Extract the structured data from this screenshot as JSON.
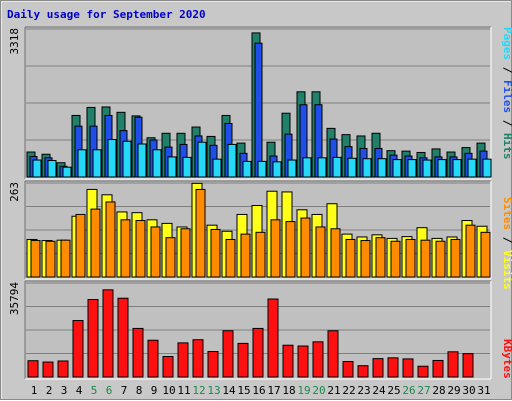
{
  "title": "Daily usage for September 2020",
  "colors": {
    "background": "#c8c8c8",
    "panel": "#c0c0c0",
    "hits": "#20806a",
    "files": "#1f4fe8",
    "pages": "#26d8f8",
    "visits": "#ffff1a",
    "sites": "#ff8c00",
    "kbytes": "#ff1010",
    "weekend_label": "#1c8a4a",
    "weekday_label": "#000000"
  },
  "side_labels": {
    "top": [
      {
        "text": "Pages",
        "color": "#26d8f8"
      },
      {
        "text": " / ",
        "color": "#000000"
      },
      {
        "text": "Files",
        "color": "#1f4fe8"
      },
      {
        "text": " / ",
        "color": "#000000"
      },
      {
        "text": "Hits",
        "color": "#20806a"
      }
    ],
    "middle": [
      {
        "text": "Sites",
        "color": "#ff8c00"
      },
      {
        "text": " / ",
        "color": "#000000"
      },
      {
        "text": "Visits",
        "color": "#ffff1a"
      }
    ],
    "bottom": [
      {
        "text": "KBytes",
        "color": "#ff1010"
      }
    ]
  },
  "chart_data": [
    {
      "type": "bar",
      "panel": "hits-files-pages",
      "max_label": "3318",
      "ylim": [
        0,
        3318
      ],
      "categories": [
        "1",
        "2",
        "3",
        "4",
        "5",
        "6",
        "7",
        "8",
        "9",
        "10",
        "11",
        "12",
        "13",
        "14",
        "15",
        "16",
        "17",
        "18",
        "19",
        "20",
        "21",
        "22",
        "23",
        "24",
        "25",
        "26",
        "27",
        "28",
        "29",
        "30",
        "31"
      ],
      "series": [
        {
          "name": "Hits",
          "values": [
            560,
            510,
            320,
            1380,
            1560,
            1570,
            1450,
            1370,
            880,
            980,
            980,
            1120,
            910,
            1380,
            760,
            3230,
            780,
            1430,
            1910,
            1910,
            1090,
            950,
            920,
            980,
            590,
            580,
            550,
            630,
            560,
            660,
            760
          ]
        },
        {
          "name": "Files",
          "values": [
            460,
            430,
            240,
            1140,
            1140,
            1380,
            1040,
            1340,
            830,
            670,
            730,
            920,
            710,
            1200,
            530,
            3000,
            470,
            960,
            1620,
            1620,
            850,
            680,
            640,
            640,
            490,
            470,
            430,
            450,
            450,
            530,
            580
          ]
        },
        {
          "name": "Pages",
          "values": [
            380,
            370,
            220,
            610,
            610,
            840,
            800,
            740,
            610,
            450,
            440,
            780,
            400,
            730,
            350,
            350,
            340,
            380,
            430,
            430,
            440,
            420,
            410,
            410,
            390,
            390,
            380,
            390,
            390,
            400,
            400
          ]
        }
      ]
    },
    {
      "type": "bar",
      "panel": "visits-sites",
      "max_label": "263",
      "ylim": [
        0,
        263
      ],
      "categories": [
        "1",
        "2",
        "3",
        "4",
        "5",
        "6",
        "7",
        "8",
        "9",
        "10",
        "11",
        "12",
        "13",
        "14",
        "15",
        "16",
        "17",
        "18",
        "19",
        "20",
        "21",
        "22",
        "23",
        "24",
        "25",
        "26",
        "27",
        "28",
        "29",
        "30",
        "31"
      ],
      "series": [
        {
          "name": "Visits",
          "values": [
            105,
            102,
            103,
            170,
            245,
            230,
            182,
            180,
            160,
            150,
            140,
            262,
            145,
            128,
            175,
            200,
            240,
            238,
            188,
            175,
            205,
            120,
            112,
            118,
            108,
            113,
            138,
            108,
            112,
            158,
            142
          ]
        },
        {
          "name": "Sites",
          "values": [
            102,
            100,
            103,
            175,
            190,
            210,
            160,
            158,
            140,
            110,
            135,
            245,
            133,
            105,
            120,
            125,
            160,
            155,
            165,
            140,
            135,
            105,
            102,
            110,
            100,
            105,
            103,
            100,
            105,
            145,
            125
          ]
        }
      ]
    },
    {
      "type": "bar",
      "panel": "kbytes",
      "max_label": "35794",
      "ylim": [
        0,
        35794
      ],
      "categories": [
        "1",
        "2",
        "3",
        "4",
        "5",
        "6",
        "7",
        "8",
        "9",
        "10",
        "11",
        "12",
        "13",
        "14",
        "15",
        "16",
        "17",
        "18",
        "19",
        "20",
        "21",
        "22",
        "23",
        "24",
        "25",
        "26",
        "27",
        "28",
        "29",
        "30",
        "31"
      ],
      "series": [
        {
          "name": "KBytes",
          "values": [
            6200,
            5700,
            6100,
            21500,
            29500,
            33200,
            30000,
            18500,
            14000,
            7800,
            13000,
            14200,
            9700,
            17600,
            12800,
            18500,
            29700,
            12100,
            11800,
            13400,
            17600,
            5900,
            4300,
            7000,
            7300,
            6900,
            4100,
            6300,
            9600,
            8900,
            0
          ]
        }
      ]
    }
  ],
  "weekend_days": [
    5,
    6,
    12,
    13,
    19,
    20,
    26,
    27
  ]
}
